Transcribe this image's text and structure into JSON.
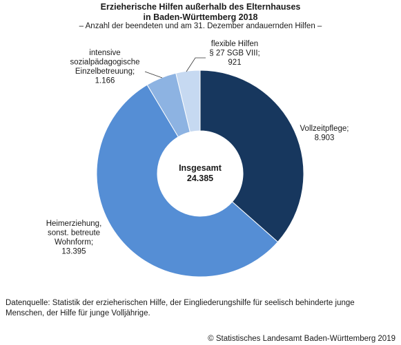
{
  "chart_data": {
    "type": "pie",
    "title_line1": "Erzieherische Hilfen außerhalb des Elternhauses",
    "title_line2": "in Baden-Württemberg 2018",
    "subtitle": "– Anzahl der beendeten und am 31. Dezember andauernden Hilfen –",
    "center_label": "Insgesamt",
    "center_value": "24.385",
    "slices": [
      {
        "label_lines": [
          "Vollzeitpflege;"
        ],
        "value_text": "8.903",
        "value": 8903,
        "color": "#17375e"
      },
      {
        "label_lines": [
          "Heimerziehung,",
          "sonst. betreute",
          "Wohnform;"
        ],
        "value_text": "13.395",
        "value": 13395,
        "color": "#558ed5"
      },
      {
        "label_lines": [
          "intensive",
          "sozialpädagogische",
          "Einzelbetreuung;"
        ],
        "value_text": "1.166",
        "value": 1166,
        "color": "#8db3e2"
      },
      {
        "label_lines": [
          "flexible Hilfen",
          "§ 27 SGB VIII;"
        ],
        "value_text": "921",
        "value": 921,
        "color": "#c6d9f1"
      }
    ]
  },
  "source_text": "Datenquelle: Statistik der erzieherischen Hilfe, der Eingliederungshilfe für seelisch behinderte junge Menschen, der Hilfe für junge Volljährige.",
  "copyright": "© Statistisches Landesamt Baden-Württemberg 2019"
}
